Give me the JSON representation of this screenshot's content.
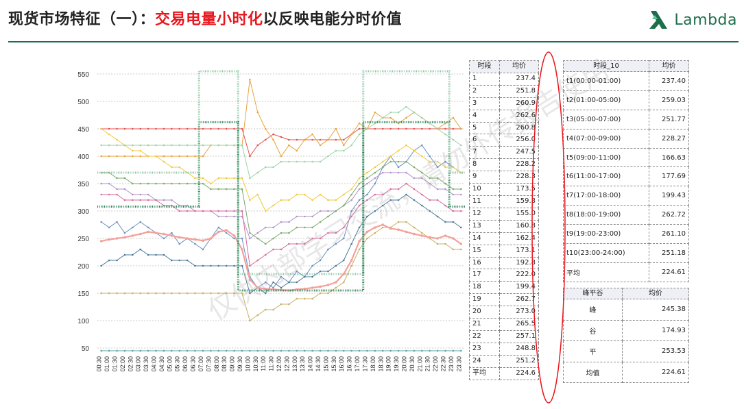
{
  "header": {
    "title_black_1": "现货市场特征（一）：",
    "title_red": "交易电量小时化",
    "title_black_2": "以反映电能分时价值",
    "logo_text": "Lambda",
    "logo_color": "#1f6e4b",
    "accent_red": "#e8171e"
  },
  "watermark": "仅供内部学习交流，请勿外传报告使用",
  "chart_data": {
    "type": "line",
    "title": "",
    "xlabel": "",
    "ylabel": "",
    "ylim": [
      40,
      560
    ],
    "yticks": [
      50,
      100,
      150,
      200,
      250,
      300,
      350,
      400,
      450,
      500,
      550
    ],
    "grid": true,
    "x": [
      "00:30",
      "01:00",
      "01:30",
      "02:00",
      "02:30",
      "03:00",
      "03:30",
      "04:00",
      "04:30",
      "05:00",
      "05:30",
      "06:00",
      "06:30",
      "07:00",
      "07:30",
      "08:00",
      "08:30",
      "09:00",
      "09:30",
      "10:00",
      "10:30",
      "11:00",
      "11:30",
      "12:00",
      "12:30",
      "13:00",
      "13:30",
      "14:00",
      "14:30",
      "15:00",
      "15:30",
      "16:00",
      "16:30",
      "17:00",
      "17:30",
      "18:00",
      "18:30",
      "19:00",
      "19:30",
      "20:00",
      "20:30",
      "21:00",
      "21:30",
      "22:00",
      "22:30",
      "23:00",
      "23:30"
    ],
    "series": [
      {
        "color": "#e6504a",
        "values": [
          450,
          450,
          450,
          450,
          450,
          450,
          450,
          450,
          450,
          450,
          450,
          450,
          450,
          450,
          450,
          450,
          450,
          450,
          450,
          400,
          420,
          430,
          440,
          435,
          430,
          430,
          430,
          430,
          430,
          430,
          430,
          430,
          440,
          450,
          450,
          450,
          450,
          450,
          450,
          450,
          450,
          450,
          450,
          450,
          450,
          450,
          450
        ]
      },
      {
        "color": "#e8a23a",
        "values": [
          400,
          400,
          400,
          400,
          400,
          400,
          400,
          400,
          400,
          400,
          400,
          400,
          400,
          400,
          420,
          420,
          420,
          420,
          420,
          540,
          480,
          450,
          430,
          400,
          420,
          410,
          430,
          440,
          420,
          430,
          450,
          420,
          440,
          460,
          450,
          480,
          470,
          470,
          460,
          470,
          480,
          470,
          460,
          450,
          460,
          470,
          450
        ]
      },
      {
        "color": "#6c8ebf",
        "values": [
          280,
          270,
          280,
          260,
          270,
          280,
          270,
          260,
          250,
          260,
          240,
          250,
          240,
          230,
          250,
          270,
          260,
          250,
          250,
          180,
          160,
          170,
          160,
          180,
          170,
          190,
          180,
          200,
          210,
          230,
          240,
          250,
          300,
          320,
          330,
          350,
          380,
          400,
          380,
          390,
          410,
          420,
          400,
          380,
          390,
          380,
          370
        ]
      },
      {
        "color": "#f0c93a",
        "values": [
          450,
          440,
          430,
          420,
          410,
          410,
          400,
          400,
          390,
          380,
          380,
          370,
          360,
          360,
          350,
          360,
          360,
          360,
          360,
          320,
          330,
          300,
          310,
          320,
          320,
          330,
          330,
          320,
          330,
          320,
          320,
          330,
          340,
          360,
          370,
          380,
          390,
          400,
          410,
          420,
          410,
          400,
          390,
          390,
          380,
          380,
          370
        ]
      },
      {
        "color": "#9ad4a6",
        "values": [
          420,
          420,
          420,
          420,
          420,
          420,
          420,
          420,
          420,
          420,
          420,
          420,
          420,
          420,
          420,
          420,
          420,
          420,
          420,
          360,
          370,
          380,
          380,
          390,
          390,
          390,
          390,
          390,
          390,
          400,
          410,
          410,
          420,
          440,
          450,
          460,
          470,
          480,
          480,
          490,
          480,
          470,
          460,
          450,
          440,
          430,
          420
        ]
      },
      {
        "color": "#b090c8",
        "values": [
          350,
          350,
          340,
          340,
          330,
          330,
          330,
          320,
          320,
          320,
          310,
          310,
          300,
          300,
          300,
          290,
          290,
          290,
          290,
          250,
          260,
          270,
          270,
          280,
          280,
          290,
          290,
          290,
          300,
          300,
          300,
          310,
          320,
          340,
          350,
          360,
          370,
          370,
          370,
          370,
          360,
          360,
          350,
          340,
          340,
          330,
          330
        ]
      },
      {
        "color": "#7aaa6a",
        "values": [
          370,
          370,
          360,
          360,
          350,
          350,
          350,
          350,
          350,
          350,
          350,
          350,
          350,
          350,
          340,
          340,
          340,
          340,
          340,
          260,
          250,
          240,
          250,
          260,
          260,
          270,
          270,
          270,
          280,
          290,
          300,
          310,
          330,
          350,
          360,
          370,
          380,
          390,
          390,
          390,
          380,
          370,
          360,
          360,
          350,
          340,
          340
        ]
      },
      {
        "color": "#d66a9a",
        "values": [
          330,
          330,
          330,
          320,
          320,
          320,
          320,
          320,
          310,
          310,
          300,
          300,
          300,
          300,
          300,
          300,
          300,
          300,
          300,
          200,
          210,
          220,
          230,
          230,
          240,
          240,
          240,
          250,
          250,
          260,
          260,
          270,
          290,
          310,
          320,
          330,
          330,
          340,
          340,
          350,
          340,
          330,
          320,
          320,
          310,
          300,
          300
        ]
      },
      {
        "color": "#4a7a9a",
        "values": [
          200,
          210,
          210,
          220,
          220,
          230,
          220,
          220,
          220,
          210,
          210,
          210,
          200,
          200,
          200,
          200,
          200,
          200,
          200,
          150,
          160,
          150,
          170,
          160,
          170,
          170,
          180,
          180,
          190,
          190,
          200,
          210,
          240,
          270,
          290,
          300,
          310,
          320,
          320,
          330,
          320,
          310,
          300,
          290,
          280,
          280,
          270
        ]
      },
      {
        "color": "#c8b060",
        "values": [
          150,
          150,
          150,
          150,
          150,
          150,
          150,
          150,
          150,
          150,
          150,
          150,
          150,
          150,
          150,
          150,
          150,
          150,
          150,
          100,
          110,
          120,
          120,
          130,
          130,
          140,
          140,
          140,
          150,
          150,
          160,
          170,
          200,
          230,
          250,
          260,
          270,
          270,
          280,
          280,
          270,
          260,
          250,
          240,
          240,
          230,
          230
        ]
      },
      {
        "color": "#5aa0a0",
        "values": [
          45,
          45,
          45,
          45,
          45,
          45,
          45,
          45,
          45,
          45,
          45,
          45,
          45,
          45,
          45,
          45,
          45,
          45,
          45,
          45,
          45,
          45,
          45,
          45,
          45,
          45,
          45,
          45,
          45,
          45,
          45,
          45,
          45,
          45,
          45,
          45,
          45,
          45,
          45,
          45,
          45,
          45,
          45,
          45,
          45,
          45,
          45
        ]
      },
      {
        "color": "#f4a09a",
        "values": [
          245,
          248,
          250,
          252,
          255,
          258,
          262,
          260,
          258,
          255,
          252,
          250,
          248,
          246,
          250,
          262,
          265,
          255,
          230,
          175,
          160,
          158,
          157,
          156,
          155,
          157,
          158,
          160,
          162,
          165,
          170,
          185,
          210,
          245,
          262,
          270,
          275,
          268,
          266,
          262,
          258,
          255,
          252,
          250,
          255,
          250,
          240
        ]
      }
    ],
    "step_series": [
      {
        "color": "#1f7a4d",
        "name": "",
        "segments": [
          {
            "from": "00:30",
            "to": "06:30",
            "value": 308
          },
          {
            "from": "07:00",
            "to": "09:00",
            "value": 462
          },
          {
            "from": "09:30",
            "to": "17:00",
            "value": 155
          },
          {
            "from": "17:30",
            "to": "22:30",
            "value": 462
          },
          {
            "from": "23:00",
            "to": "23:30",
            "value": 308
          }
        ]
      },
      {
        "color": "#8bc4a4",
        "name": "",
        "segments": [
          {
            "from": "00:30",
            "to": "06:30",
            "value": 370
          },
          {
            "from": "07:00",
            "to": "09:00",
            "value": 555
          },
          {
            "from": "09:30",
            "to": "17:00",
            "value": 185
          },
          {
            "from": "17:30",
            "to": "22:30",
            "value": 555
          },
          {
            "from": "23:00",
            "to": "23:30",
            "value": 370
          }
        ]
      }
    ]
  },
  "table_hourly": {
    "headers": [
      "时段",
      "均价"
    ],
    "rows": [
      [
        "1",
        "237.4"
      ],
      [
        "2",
        "251.8"
      ],
      [
        "3",
        "260.9"
      ],
      [
        "4",
        "262.6"
      ],
      [
        "5",
        "260.8"
      ],
      [
        "6",
        "256.0"
      ],
      [
        "7",
        "247.5"
      ],
      [
        "8",
        "228.2"
      ],
      [
        "9",
        "228.3"
      ],
      [
        "10",
        "173.5"
      ],
      [
        "11",
        "159.8"
      ],
      [
        "12",
        "155.0"
      ],
      [
        "13",
        "160.8"
      ],
      [
        "14",
        "162.4"
      ],
      [
        "15",
        "173.1"
      ],
      [
        "16",
        "192.8"
      ],
      [
        "17",
        "222.0"
      ],
      [
        "18",
        "199.4"
      ],
      [
        "19",
        "262.7"
      ],
      [
        "20",
        "273.0"
      ],
      [
        "21",
        "265.5"
      ],
      [
        "22",
        "257.1"
      ],
      [
        "23",
        "248.8"
      ],
      [
        "24",
        "251.2"
      ],
      [
        "平均",
        "224.6"
      ]
    ]
  },
  "table_period": {
    "headers": [
      "时段_10",
      "均价"
    ],
    "rows": [
      [
        "t1(00:00-01:00)",
        "237.40"
      ],
      [
        "t2(01:00-05:00)",
        "259.03"
      ],
      [
        "t3(05:00-07:00)",
        "251.77"
      ],
      [
        "t4(07:00-09:00)",
        "228.27"
      ],
      [
        "t5(09:00-11:00)",
        "166.63"
      ],
      [
        "t6(11:00-17:00)",
        "177.69"
      ],
      [
        "t7(17:00-18:00)",
        "199.43"
      ],
      [
        "t8(18:00-19:00)",
        "262.72"
      ],
      [
        "t9(19:00-23:00)",
        "261.10"
      ],
      [
        "t10(23:00-24:00)",
        "251.18"
      ],
      [
        "平均",
        "224.61"
      ]
    ]
  },
  "table_peak": {
    "headers": [
      "峰平谷",
      "均价"
    ],
    "rows": [
      [
        "峰",
        "245.38"
      ],
      [
        "谷",
        "174.93"
      ],
      [
        "平",
        "253.53"
      ],
      [
        "均值",
        "224.61"
      ]
    ]
  },
  "highlight_oval_color": "#e8171e"
}
